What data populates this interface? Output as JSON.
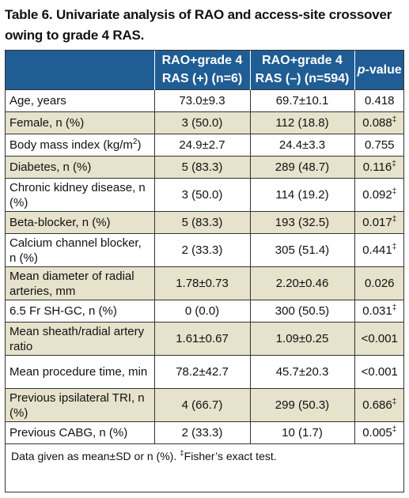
{
  "title": "Table 6. Univariate analysis of RAO and access-site crossover owing to grade 4 RAS.",
  "header": {
    "col1": "",
    "col2": "RAO+grade 4 RAS (+) (n=6)",
    "col3": "RAO+grade 4 RAS (–) (n=594)",
    "col4_italic": "p",
    "col4_rest": "-value"
  },
  "rows": [
    {
      "label": "Age, years",
      "a": "73.0±9.3",
      "b": "69.7±10.1",
      "p": "0.418",
      "mark": "",
      "shade": "odd",
      "tall": false
    },
    {
      "label": "Female, n (%)",
      "a": "3 (50.0)",
      "b": "112 (18.8)",
      "p": "0.088",
      "mark": "‡",
      "shade": "even",
      "tall": false
    },
    {
      "label": "Body mass index (kg/m",
      "label_sup": "2",
      "label_tail": ")",
      "a": "24.9±2.7",
      "b": "24.4±3.3",
      "p": "0.755",
      "mark": "",
      "shade": "odd",
      "tall": false
    },
    {
      "label": "Diabetes, n (%)",
      "a": "5 (83.3)",
      "b": "289 (48.7)",
      "p": "0.116",
      "mark": "‡",
      "shade": "even",
      "tall": false
    },
    {
      "label": "Chronic kidney disease, n (%)",
      "a": "3 (50.0)",
      "b": "114 (19.2)",
      "p": "0.092",
      "mark": "‡",
      "shade": "odd",
      "tall": true
    },
    {
      "label": "Beta-blocker, n (%)",
      "a": "5 (83.3)",
      "b": "193 (32.5)",
      "p": "0.017",
      "mark": "‡",
      "shade": "even",
      "tall": false
    },
    {
      "label": "Calcium channel blocker, n (%)",
      "a": "2 (33.3)",
      "b": "305 (51.4)",
      "p": "0.441",
      "mark": "‡",
      "shade": "odd",
      "tall": true
    },
    {
      "label": "Mean diameter of radial arteries, mm",
      "a": "1.78±0.73",
      "b": "2.20±0.46",
      "p": "0.026",
      "mark": "",
      "shade": "even",
      "tall": true
    },
    {
      "label": "6.5 Fr SH-GC, n (%)",
      "a": "0 (0.0)",
      "b": "300 (50.5)",
      "p": "0.031",
      "mark": "‡",
      "shade": "odd",
      "tall": false
    },
    {
      "label": "Mean sheath/radial artery ratio",
      "a": "1.61±0.67",
      "b": "1.09±0.25",
      "p": "<0.001",
      "mark": "",
      "shade": "even",
      "tall": true
    },
    {
      "label": "Mean procedure time, min",
      "a": "78.2±42.7",
      "b": "45.7±20.3",
      "p": "<0.001",
      "mark": "",
      "shade": "odd",
      "tall": true
    },
    {
      "label": "Previous ipsilateral TRI, n (%)",
      "a": "4 (66.7)",
      "b": "299 (50.3)",
      "p": "0.686",
      "mark": "‡",
      "shade": "even",
      "tall": true
    },
    {
      "label": "Previous CABG, n (%)",
      "a": "2 (33.3)",
      "b": "10 (1.7)",
      "p": "0.005",
      "mark": "‡",
      "shade": "odd",
      "tall": false
    }
  ],
  "footnote": {
    "text1": "Data given as mean±SD or n (%). ",
    "mark": "‡",
    "text2": "Fisher’s exact test."
  },
  "colors": {
    "header_bg": "#1f5d94",
    "shade_bg": "#e6e2cb"
  }
}
